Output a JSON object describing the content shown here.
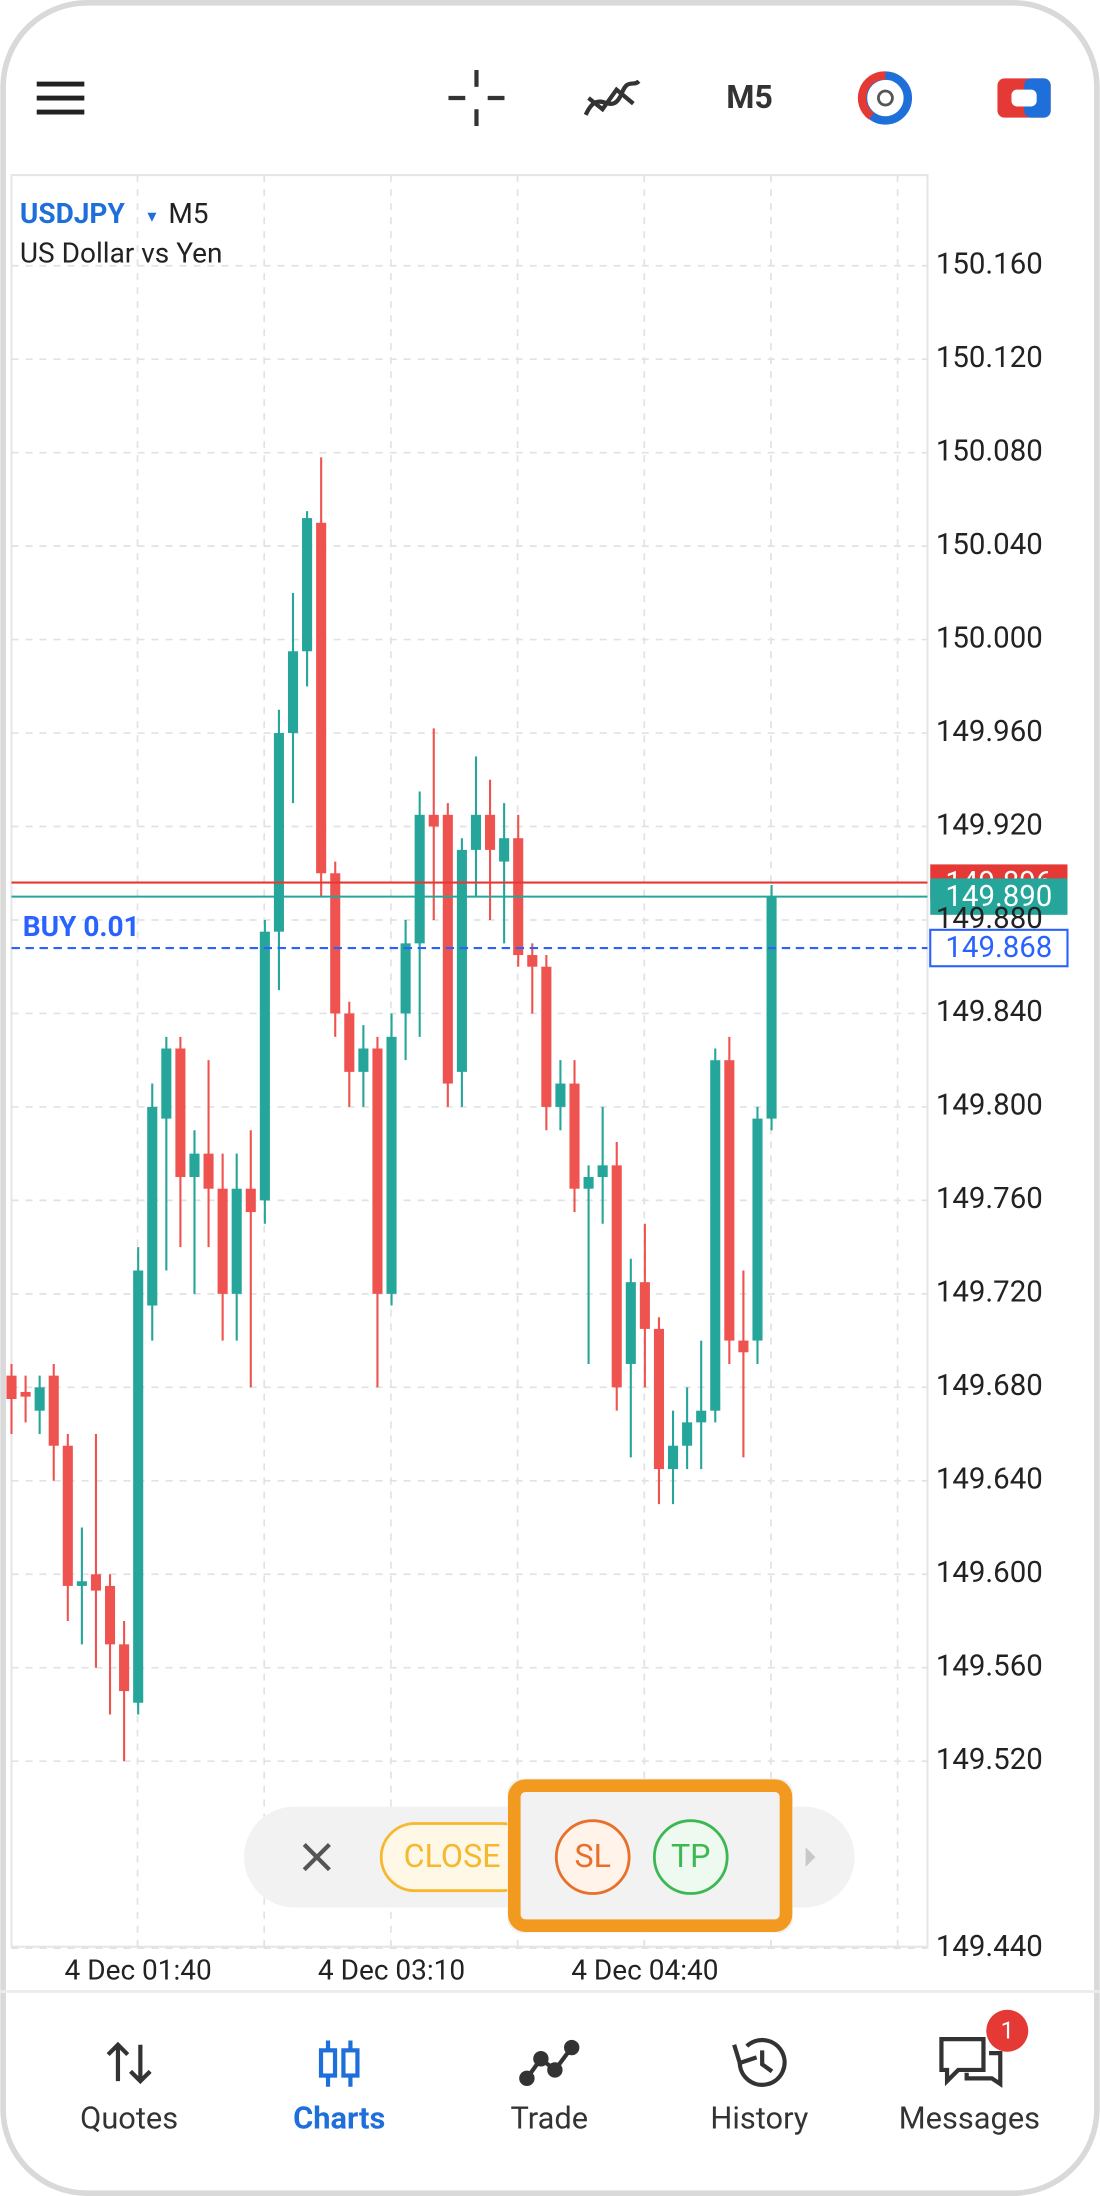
{
  "top_bar": {
    "timeframe": "M5"
  },
  "chart_data": {
    "type": "candlestick",
    "symbol": "USDJPY",
    "symbol_menu": "▾",
    "timeframe": "M5",
    "description": "US Dollar vs Yen",
    "categories": [
      null,
      null,
      null,
      null,
      null,
      null,
      null,
      null,
      null,
      "4 Dec 01:40",
      null,
      null,
      null,
      null,
      null,
      null,
      null,
      null,
      null,
      null,
      null,
      null,
      null,
      null,
      null,
      null,
      null,
      "4 Dec 03:10",
      null,
      null,
      null,
      null,
      null,
      null,
      null,
      null,
      null,
      null,
      null,
      null,
      null,
      null,
      null,
      null,
      null,
      "4 Dec 04:40",
      null,
      null,
      null,
      null,
      null,
      null,
      null,
      null,
      null
    ],
    "open": [
      149.685,
      149.678,
      149.67,
      149.685,
      149.655,
      149.595,
      149.6,
      149.595,
      149.57,
      149.545,
      149.715,
      149.795,
      149.825,
      149.77,
      149.78,
      149.765,
      149.72,
      149.765,
      149.76,
      149.875,
      149.96,
      149.995,
      150.05,
      149.9,
      149.84,
      149.815,
      149.825,
      149.72,
      149.84,
      149.87,
      149.925,
      149.925,
      149.815,
      149.91,
      149.925,
      149.905,
      149.915,
      149.865,
      149.86,
      149.8,
      149.81,
      149.765,
      149.77,
      149.775,
      149.69,
      149.725,
      149.705,
      149.645,
      149.655,
      149.665,
      149.67,
      149.82,
      149.7,
      149.7,
      149.795
    ],
    "high": [
      149.69,
      149.685,
      149.685,
      149.69,
      149.66,
      149.62,
      149.66,
      149.6,
      149.58,
      149.74,
      149.81,
      149.83,
      149.83,
      149.79,
      149.82,
      149.78,
      149.78,
      149.79,
      149.88,
      149.97,
      150.02,
      150.055,
      150.078,
      149.905,
      149.845,
      149.835,
      149.83,
      149.84,
      149.88,
      149.935,
      149.962,
      149.93,
      149.915,
      149.95,
      149.94,
      149.93,
      149.925,
      149.87,
      149.865,
      149.82,
      149.82,
      149.775,
      149.8,
      149.785,
      149.735,
      149.75,
      149.71,
      149.67,
      149.68,
      149.7,
      149.825,
      149.83,
      149.73,
      149.8,
      149.895
    ],
    "low": [
      149.66,
      149.665,
      149.66,
      149.64,
      149.58,
      149.57,
      149.56,
      149.54,
      149.52,
      149.54,
      149.7,
      149.73,
      149.74,
      149.72,
      149.74,
      149.7,
      149.7,
      149.68,
      149.75,
      149.85,
      149.93,
      149.98,
      149.89,
      149.83,
      149.8,
      149.8,
      149.68,
      149.715,
      149.82,
      149.83,
      149.88,
      149.8,
      149.8,
      149.89,
      149.88,
      149.87,
      149.86,
      149.84,
      149.79,
      149.79,
      149.755,
      149.69,
      149.75,
      149.67,
      149.65,
      149.68,
      149.63,
      149.63,
      149.645,
      149.645,
      149.665,
      149.69,
      149.65,
      149.69,
      149.79
    ],
    "close": [
      149.675,
      149.676,
      149.68,
      149.655,
      149.595,
      149.597,
      149.593,
      149.57,
      149.55,
      149.73,
      149.8,
      149.825,
      149.77,
      149.78,
      149.765,
      149.72,
      149.765,
      149.755,
      149.875,
      149.96,
      149.995,
      150.052,
      149.9,
      149.84,
      149.815,
      149.825,
      149.72,
      149.83,
      149.87,
      149.925,
      149.92,
      149.81,
      149.91,
      149.925,
      149.91,
      149.915,
      149.865,
      149.86,
      149.8,
      149.81,
      149.765,
      149.77,
      149.775,
      149.68,
      149.725,
      149.705,
      149.645,
      149.655,
      149.665,
      149.67,
      149.82,
      149.7,
      149.695,
      149.795,
      149.89
    ],
    "up_color": "#26a69a",
    "down_color": "#ef5350",
    "ylim": [
      149.44,
      150.2
    ],
    "yticks": [
      {
        "value": 150.16,
        "label": "150.160"
      },
      {
        "value": 150.12,
        "label": "150.120"
      },
      {
        "value": 150.08,
        "label": "150.080"
      },
      {
        "value": 150.04,
        "label": "150.040"
      },
      {
        "value": 150,
        "label": "150.000"
      },
      {
        "value": 149.96,
        "label": "149.960"
      },
      {
        "value": 149.92,
        "label": "149.920"
      },
      {
        "value": 149.88,
        "label": "149.880"
      },
      {
        "value": 149.84,
        "label": "149.840"
      },
      {
        "value": 149.8,
        "label": "149.800"
      },
      {
        "value": 149.76,
        "label": "149.760"
      },
      {
        "value": 149.72,
        "label": "149.720"
      },
      {
        "value": 149.68,
        "label": "149.680"
      },
      {
        "value": 149.64,
        "label": "149.640"
      },
      {
        "value": 149.6,
        "label": "149.600"
      },
      {
        "value": 149.56,
        "label": "149.560"
      },
      {
        "value": 149.52,
        "label": "149.520"
      },
      {
        "value": 149.44,
        "label": "149.440"
      }
    ],
    "grid": true,
    "ask": {
      "value": 149.896,
      "label": "149.896",
      "color": "#e53935"
    },
    "bid": {
      "value": 149.89,
      "label": "149.890",
      "color": "#26a69a"
    },
    "position": {
      "text": "BUY 0.01",
      "value": 149.868,
      "label": "149.868",
      "color": "#2962ff"
    }
  },
  "trade_toolbar": {
    "close": "CLOSE",
    "sl": "SL",
    "tp": "TP"
  },
  "nav": {
    "items": [
      "Quotes",
      "Charts",
      "Trade",
      "History",
      "Messages"
    ],
    "active": 1,
    "badge": "1"
  }
}
